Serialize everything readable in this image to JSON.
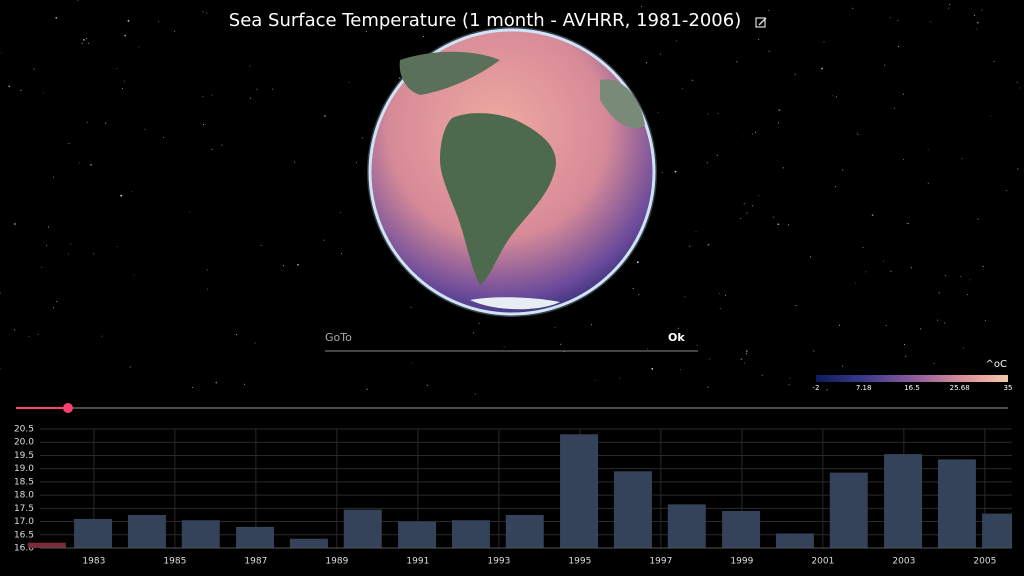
{
  "header": {
    "title": "Sea Surface Temperature (1 month - AVHRR, 1981-2006)"
  },
  "goto": {
    "placeholder": "GoTo",
    "button": "Ok"
  },
  "colorbar": {
    "unit": "^oC",
    "ticks": [
      -2,
      7.18,
      16.5,
      25.68,
      35
    ],
    "colors": [
      "#0d1a5c",
      "#3a3a8c",
      "#8a5a9c",
      "#d98a9a",
      "#f4c9a8"
    ]
  },
  "chart_data": {
    "type": "bar",
    "x": [
      1981.84,
      1982.98,
      1984.31,
      1985.64,
      1986.98,
      1988.31,
      1989.64,
      1990.98,
      1992.31,
      1993.64,
      1994.98,
      1996.31,
      1997.64,
      1998.98,
      2000.31,
      2001.64,
      2002.98,
      2004.31,
      2005.4
    ],
    "values": [
      16.2,
      17.1,
      17.25,
      17.05,
      16.8,
      16.35,
      17.45,
      17.0,
      17.05,
      17.25,
      20.3,
      18.9,
      17.65,
      17.4,
      16.55,
      18.85,
      19.55,
      19.35,
      17.3
    ],
    "colors": [
      "#7a2a3a",
      "#34435a",
      "#34435a",
      "#34435a",
      "#34435a",
      "#34435a",
      "#34435a",
      "#34435a",
      "#34435a",
      "#34435a",
      "#34435a",
      "#34435a",
      "#34435a",
      "#34435a",
      "#34435a",
      "#34435a",
      "#34435a",
      "#34435a",
      "#34435a"
    ],
    "xlim": [
      1981.67,
      2005.67
    ],
    "xticks": [
      1983,
      1985,
      1987,
      1989,
      1991,
      1993,
      1995,
      1997,
      1999,
      2001,
      2003,
      2005
    ],
    "ylim": [
      16,
      20.5
    ],
    "yticks": [
      {
        "value": 16,
        "label": "16.0"
      },
      16.5,
      {
        "value": 17,
        "label": "17.0"
      },
      17.5,
      {
        "value": 18,
        "label": "18.0"
      },
      18.5,
      {
        "value": 19,
        "label": "19.0"
      },
      19.5,
      {
        "value": 20,
        "label": "20.0"
      },
      20.5
    ],
    "grid": true
  }
}
